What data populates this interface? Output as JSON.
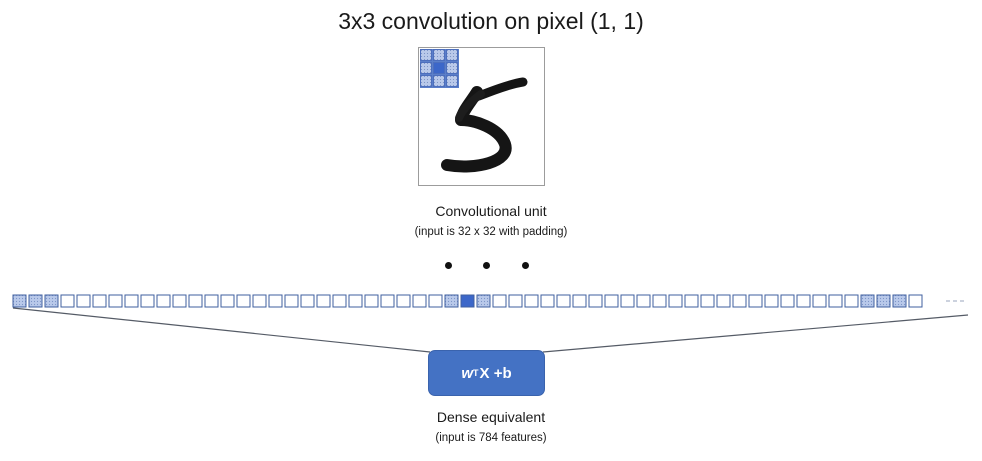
{
  "title": "3x3 convolution on pixel (1, 1)",
  "conv_unit": {
    "label": "Convolutional unit",
    "note": "(input is 32 x 32 with padding)"
  },
  "dense": {
    "formula_var": "w",
    "formula_sup": "T",
    "formula_rest": "X +b",
    "label": "Dense equivalent",
    "note": "(input is 784 features)"
  },
  "colors": {
    "accent_blue": "#4472c4",
    "kernel_light": "#b9c9ea",
    "kernel_dark": "#3c67c9",
    "cell_border": "#3f5f9f",
    "line": "#555b66"
  },
  "strip_pattern": {
    "total_cells": 57,
    "shaded_cells": [
      0,
      1,
      2,
      27,
      29,
      53,
      54,
      55
    ],
    "center_cells": [
      28
    ]
  }
}
